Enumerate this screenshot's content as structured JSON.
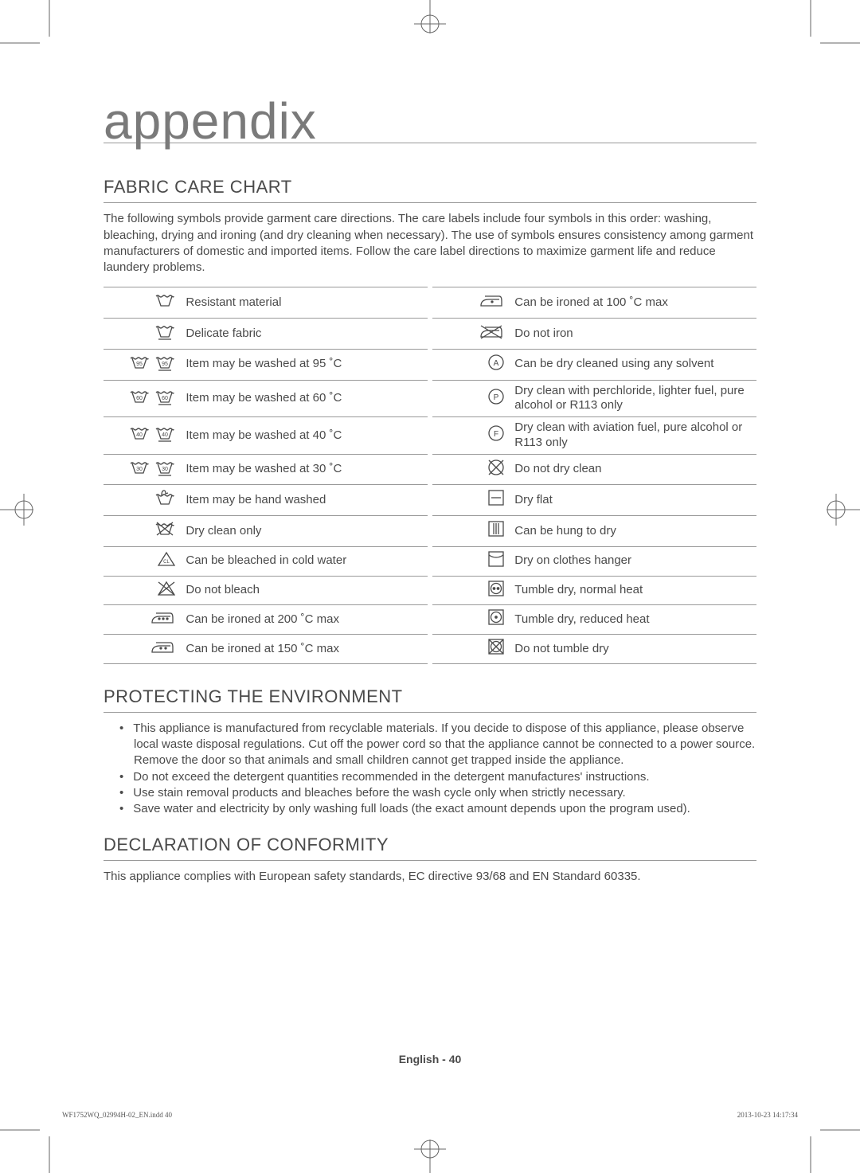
{
  "page": {
    "main_title": "appendix",
    "footer_center_prefix": "English - ",
    "footer_center_page": "40",
    "footer_left": "WF1752WQ_02994H-02_EN.indd   40",
    "footer_right": "2013-10-23   14:17:34"
  },
  "fabric": {
    "title": "FABRIC CARE CHART",
    "intro": "The following symbols provide garment care directions. The care labels include four symbols in this order: washing, bleaching, drying and ironing (and dry cleaning when necessary).  The use of symbols ensures consistency among garment manufacturers of domestic and imported items.  Follow the care label directions to maximize garment life and reduce laundery problems.",
    "rows": [
      {
        "left_icon": "wash-basin",
        "left_text": "Resistant material",
        "right_icon": "iron-1dot",
        "right_text": "Can be ironed at 100 ˚C max"
      },
      {
        "left_icon": "wash-basin-line",
        "left_text": "Delicate fabric",
        "right_icon": "iron-cross",
        "right_text": "Do not iron"
      },
      {
        "left_icon": "wash-95-pair",
        "left_text": "Item may be washed at 95 ˚C",
        "right_icon": "circle-a",
        "right_text": "Can be dry cleaned using any solvent"
      },
      {
        "left_icon": "wash-60-pair",
        "left_text": "Item may be washed at 60 ˚C",
        "right_icon": "circle-p",
        "right_text": "Dry clean with perchloride, lighter fuel, pure alcohol or R113 only"
      },
      {
        "left_icon": "wash-40-pair",
        "left_text": "Item may be washed at 40 ˚C",
        "right_icon": "circle-f",
        "right_text": "Dry clean with aviation fuel, pure alcohol or R113 only"
      },
      {
        "left_icon": "wash-30-pair",
        "left_text": "Item may be washed at 30 ˚C",
        "right_icon": "circle-cross",
        "right_text": "Do not dry clean"
      },
      {
        "left_icon": "hand-wash",
        "left_text": "Item may be hand washed",
        "right_icon": "square-hbar",
        "right_text": "Dry flat"
      },
      {
        "left_icon": "wash-cross",
        "left_text": "Dry clean only",
        "right_icon": "square-vbars",
        "right_text": "Can be hung to dry"
      },
      {
        "left_icon": "triangle-cl",
        "left_text": "Can be bleached in cold water",
        "right_icon": "square-arc",
        "right_text": "Dry on clothes hanger"
      },
      {
        "left_icon": "triangle-cross",
        "left_text": "Do not bleach",
        "right_icon": "sq-circ-2dot",
        "right_text": "Tumble dry, normal heat"
      },
      {
        "left_icon": "iron-3dot",
        "left_text": "Can be ironed at 200 ˚C max",
        "right_icon": "sq-circ-1dot",
        "right_text": "Tumble dry, reduced heat"
      },
      {
        "left_icon": "iron-2dot",
        "left_text": "Can be ironed at 150 ˚C max",
        "right_icon": "sq-cross",
        "right_text": "Do not tumble dry"
      }
    ]
  },
  "environment": {
    "title": "PROTECTING THE ENVIRONMENT",
    "bullets": [
      "This appliance is manufactured from recyclable materials. If you decide to dispose of this appliance, please observe local waste disposal regulations. Cut off the power cord so that the appliance cannot be connected to a power source. Remove the door so that animals and small children cannot get trapped inside the appliance.",
      "Do not exceed the detergent quantities recommended in the detergent manufactures' instructions.",
      "Use stain removal products and bleaches before the wash cycle only when strictly necessary.",
      "Save water and electricity by only washing full loads (the exact amount depends upon the program used)."
    ]
  },
  "declaration": {
    "title": "DECLARATION OF CONFORMITY",
    "text": "This appliance complies with European safety standards, EC directive 93/68 and EN Standard 60335."
  },
  "style": {
    "text_color": "#4a4a4a",
    "title_color": "#7a7a7a",
    "rule_color": "#999999",
    "background": "#ffffff",
    "body_fontsize": 15,
    "h2_fontsize": 22,
    "h1_fontsize": 64
  }
}
